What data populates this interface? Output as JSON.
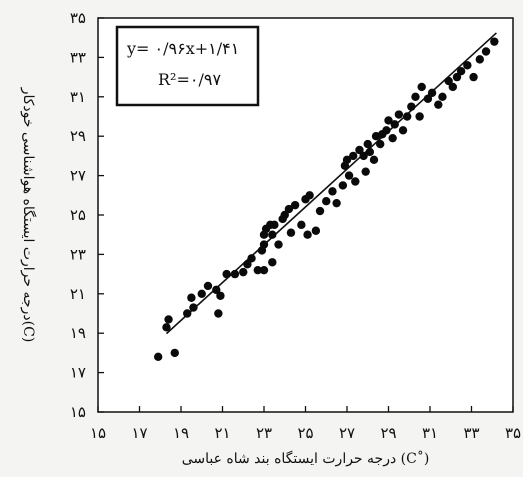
{
  "chart_data": {
    "type": "scatter",
    "xlabel": "درجه حرارت ایستگاه بند شاه عباسی (C˚)",
    "ylabel": "درجه حرارت ایستگاه هواشناسی خودکار(C)",
    "xlim": [
      15,
      35
    ],
    "ylim": [
      15,
      35
    ],
    "x_ticks": [
      15,
      17,
      19,
      21,
      23,
      25,
      27,
      29,
      31,
      33,
      35
    ],
    "y_ticks": [
      15,
      17,
      19,
      21,
      23,
      25,
      27,
      29,
      31,
      33,
      35
    ],
    "x_tick_labels": [
      "۱۵",
      "۱۷",
      "۱۹",
      "۲۱",
      "۲۳",
      "۲۵",
      "۲۷",
      "۲۹",
      "۳۱",
      "۳۳",
      "۳۵"
    ],
    "y_tick_labels": [
      "۱۵",
      "۱۷",
      "۱۹",
      "۲۱",
      "۲۳",
      "۲۵",
      "۲۷",
      "۲۹",
      "۳۱",
      "۳۳",
      "۳۵"
    ],
    "grid": false,
    "annotation": {
      "equation": "y= ۰/۹۶x+۱/۴۱",
      "r_squared": "R²=۰/۹۷"
    },
    "trendline": {
      "slope": 0.96,
      "intercept": 1.41,
      "x_range": [
        18.3,
        34.2
      ]
    },
    "points": [
      [
        17.9,
        17.8
      ],
      [
        18.3,
        19.3
      ],
      [
        18.4,
        19.7
      ],
      [
        18.7,
        18.0
      ],
      [
        19.3,
        20.0
      ],
      [
        19.5,
        20.8
      ],
      [
        19.6,
        20.3
      ],
      [
        20.0,
        21.0
      ],
      [
        20.3,
        21.4
      ],
      [
        20.7,
        21.2
      ],
      [
        20.8,
        20.0
      ],
      [
        20.9,
        20.9
      ],
      [
        21.2,
        22.0
      ],
      [
        21.6,
        22.0
      ],
      [
        22.0,
        22.1
      ],
      [
        22.2,
        22.5
      ],
      [
        22.4,
        22.8
      ],
      [
        22.7,
        22.2
      ],
      [
        22.9,
        23.2
      ],
      [
        23.0,
        23.5
      ],
      [
        23.0,
        22.2
      ],
      [
        23.0,
        24.0
      ],
      [
        23.1,
        24.3
      ],
      [
        23.3,
        24.5
      ],
      [
        23.4,
        24.0
      ],
      [
        23.4,
        22.6
      ],
      [
        23.5,
        24.5
      ],
      [
        23.7,
        23.5
      ],
      [
        23.9,
        24.8
      ],
      [
        24.0,
        25.0
      ],
      [
        24.2,
        25.3
      ],
      [
        24.3,
        24.1
      ],
      [
        24.5,
        25.5
      ],
      [
        24.8,
        24.5
      ],
      [
        25.0,
        25.8
      ],
      [
        25.1,
        24.0
      ],
      [
        25.2,
        26.0
      ],
      [
        25.5,
        24.2
      ],
      [
        25.7,
        25.2
      ],
      [
        26.0,
        25.7
      ],
      [
        26.3,
        26.2
      ],
      [
        26.5,
        25.6
      ],
      [
        26.8,
        26.5
      ],
      [
        26.9,
        27.5
      ],
      [
        27.0,
        27.8
      ],
      [
        27.1,
        27.0
      ],
      [
        27.3,
        28.0
      ],
      [
        27.4,
        26.7
      ],
      [
        27.6,
        28.3
      ],
      [
        27.8,
        28.0
      ],
      [
        27.9,
        27.2
      ],
      [
        28.0,
        28.6
      ],
      [
        28.1,
        28.2
      ],
      [
        28.3,
        27.8
      ],
      [
        28.4,
        29.0
      ],
      [
        28.6,
        28.6
      ],
      [
        28.7,
        29.1
      ],
      [
        28.9,
        29.3
      ],
      [
        29.0,
        29.8
      ],
      [
        29.2,
        28.9
      ],
      [
        29.3,
        29.6
      ],
      [
        29.5,
        30.1
      ],
      [
        29.7,
        29.3
      ],
      [
        29.9,
        30.0
      ],
      [
        30.1,
        30.5
      ],
      [
        30.3,
        31.0
      ],
      [
        30.5,
        30.0
      ],
      [
        30.6,
        31.5
      ],
      [
        30.9,
        30.9
      ],
      [
        31.1,
        31.2
      ],
      [
        31.4,
        30.6
      ],
      [
        31.6,
        31.0
      ],
      [
        31.9,
        31.8
      ],
      [
        32.1,
        31.5
      ],
      [
        32.3,
        32.0
      ],
      [
        32.5,
        32.3
      ],
      [
        32.8,
        32.6
      ],
      [
        33.1,
        32.0
      ],
      [
        33.4,
        32.9
      ],
      [
        33.7,
        33.3
      ],
      [
        34.1,
        33.8
      ]
    ]
  }
}
